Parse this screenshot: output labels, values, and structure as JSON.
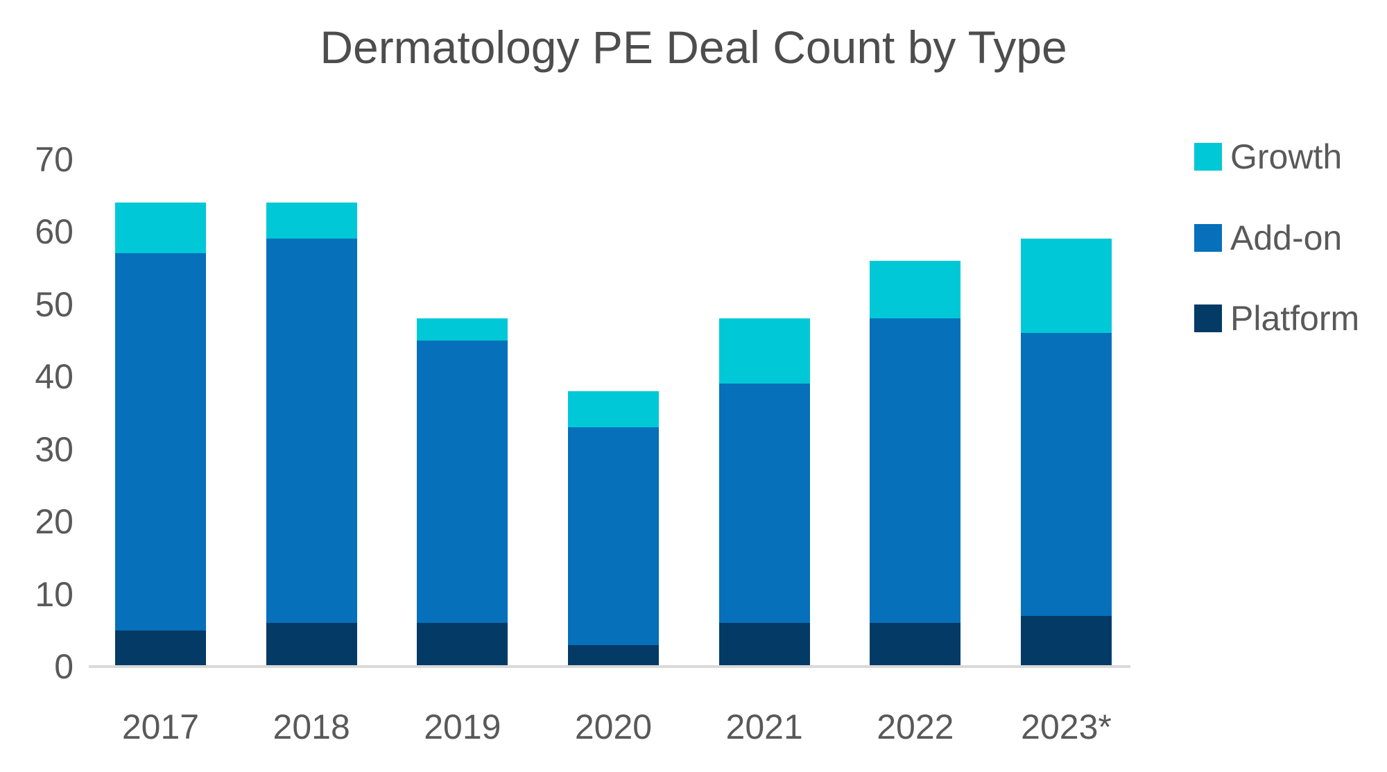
{
  "title": "Dermatology PE Deal Count by Type",
  "legend": [
    {
      "label": "Growth",
      "color": "#00c8d7"
    },
    {
      "label": "Add-on",
      "color": "#0670ba"
    },
    {
      "label": "Platform",
      "color": "#033a66"
    }
  ],
  "chart_data": {
    "type": "bar",
    "stacked": true,
    "title": "Dermatology PE Deal Count by Type",
    "categories": [
      "2017",
      "2018",
      "2019",
      "2020",
      "2021",
      "2022",
      "2023*"
    ],
    "series": [
      {
        "name": "Platform",
        "color": "#033a66",
        "values": [
          5,
          6,
          6,
          3,
          6,
          6,
          7
        ]
      },
      {
        "name": "Add-on",
        "color": "#0670ba",
        "values": [
          52,
          53,
          39,
          30,
          33,
          42,
          39
        ]
      },
      {
        "name": "Growth",
        "color": "#00c8d7",
        "values": [
          7,
          5,
          3,
          5,
          9,
          8,
          13
        ]
      }
    ],
    "totals": [
      64,
      64,
      48,
      38,
      48,
      56,
      59
    ],
    "xlabel": "",
    "ylabel": "",
    "ylim": [
      0,
      70
    ],
    "yticks": [
      0,
      10,
      20,
      30,
      40,
      50,
      60,
      70
    ],
    "grid": false,
    "legend_position": "right",
    "colors": {
      "title_text": "#4d4d4d",
      "axis_text": "#595959",
      "axis_line": "#d9d9d9",
      "background": "#ffffff"
    }
  }
}
